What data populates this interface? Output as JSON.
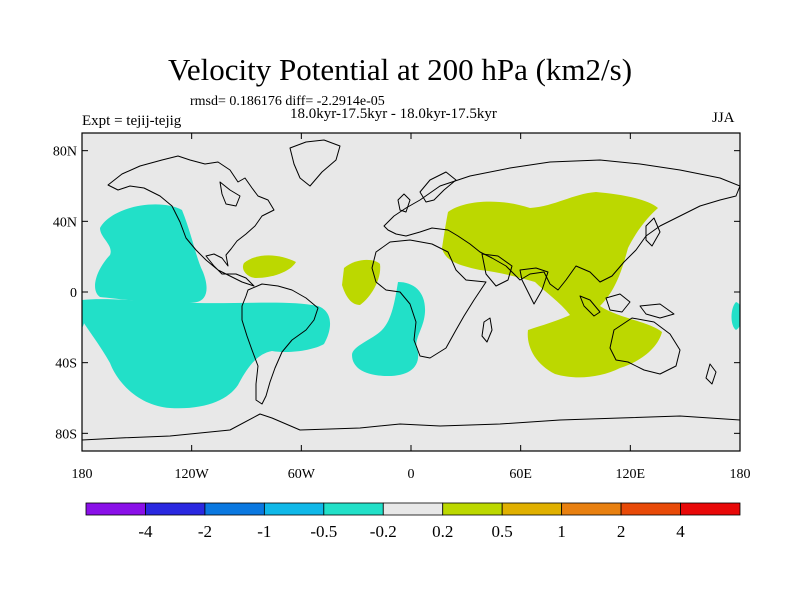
{
  "title": "Velocity Potential at 200 hPa (km2/s)",
  "stats": "rmsd= 0.186176 diff= -2.2914e-05",
  "experiment": "Expt = tejij-tejig",
  "period": "18.0kyr-17.5kyr - 18.0kyr-17.5kyr",
  "season": "JJA",
  "map": {
    "background_color": "#e8e8e8",
    "positive_color": "#bcd800",
    "negative_color": "#22e0c8",
    "x_ticks": [
      {
        "lon": -180,
        "label": "180"
      },
      {
        "lon": -120,
        "label": "120W"
      },
      {
        "lon": -60,
        "label": "60W"
      },
      {
        "lon": 0,
        "label": "0"
      },
      {
        "lon": 60,
        "label": "60E"
      },
      {
        "lon": 120,
        "label": "120E"
      },
      {
        "lon": 180,
        "label": "180"
      }
    ],
    "y_ticks": [
      {
        "lat": 80,
        "label": "80N"
      },
      {
        "lat": 40,
        "label": "40N"
      },
      {
        "lat": 0,
        "label": "0"
      },
      {
        "lat": -40,
        "label": "40S"
      },
      {
        "lat": -80,
        "label": "80S"
      }
    ]
  },
  "colorbar": {
    "colors": [
      "#8a10e8",
      "#2a28e0",
      "#0a78e0",
      "#10b8e8",
      "#22e0c8",
      "#e8e8e8",
      "#bcd800",
      "#e0b000",
      "#e88010",
      "#e84a08",
      "#e80808"
    ],
    "labels": [
      "-4",
      "-2",
      "-1",
      "-0.5",
      "-0.2",
      "0.2",
      "0.5",
      "1",
      "2",
      "4"
    ]
  }
}
